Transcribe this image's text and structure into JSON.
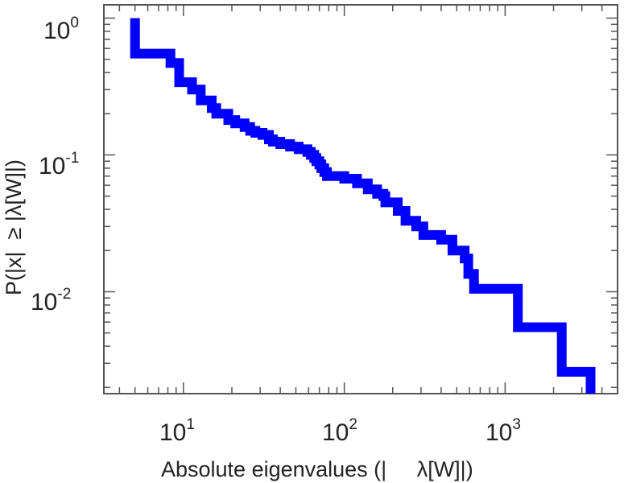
{
  "chart_data": {
    "type": "line",
    "step": true,
    "title": "",
    "xlabel": "Absolute eigenvalues (|     λ[W]|)",
    "ylabel": "P(|x|  ≥ |λ[W]|)",
    "xscale": "log",
    "yscale": "log",
    "xlim": [
      3.2,
      5000
    ],
    "ylim": [
      0.0018,
      1.25
    ],
    "grid": false,
    "legend": "none",
    "line_color": "#0000ff",
    "x_ticks": [
      {
        "value": 10,
        "base": "10",
        "exp": "1"
      },
      {
        "value": 100,
        "base": "10",
        "exp": "2"
      },
      {
        "value": 1000,
        "base": "10",
        "exp": "3"
      }
    ],
    "y_ticks": [
      {
        "value": 1,
        "base": "10",
        "exp": "0"
      },
      {
        "value": 0.1,
        "base": "10",
        "exp": "-1"
      },
      {
        "value": 0.01,
        "base": "10",
        "exp": "-2"
      }
    ],
    "series": [
      {
        "x": [
          5,
          5,
          8.3,
          9.4,
          11.3,
          12.8,
          15,
          16,
          19,
          21,
          24,
          26,
          28,
          31,
          34,
          36,
          40,
          46,
          52,
          59,
          62,
          65,
          67,
          70,
          72,
          75,
          78,
          100,
          120,
          140,
          160,
          175,
          180,
          215,
          240,
          280,
          310,
          400,
          470,
          560,
          590,
          640,
          1200,
          2250,
          3400
        ],
        "y": [
          1.0,
          0.55,
          0.47,
          0.34,
          0.3,
          0.25,
          0.22,
          0.2,
          0.18,
          0.17,
          0.16,
          0.15,
          0.145,
          0.14,
          0.13,
          0.125,
          0.12,
          0.115,
          0.11,
          0.105,
          0.1,
          0.095,
          0.09,
          0.085,
          0.08,
          0.075,
          0.07,
          0.067,
          0.062,
          0.056,
          0.052,
          0.05,
          0.045,
          0.039,
          0.033,
          0.03,
          0.026,
          0.024,
          0.02,
          0.0175,
          0.0135,
          0.0105,
          0.0055,
          0.0026,
          0.0018
        ]
      }
    ]
  }
}
